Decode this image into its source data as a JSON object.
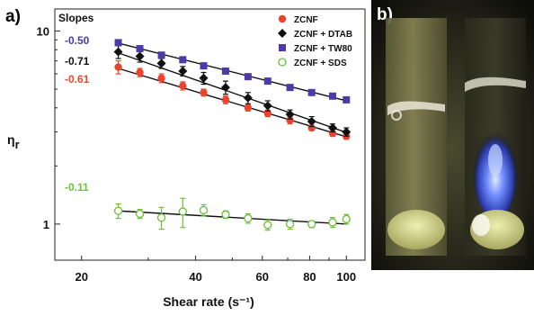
{
  "panel_labels": {
    "a": "a)",
    "b": "b)"
  },
  "chart_data": {
    "type": "scatter",
    "xlabel": "Shear rate (s⁻¹)",
    "ylabel": "ηr",
    "x_scale": "log",
    "y_scale": "log",
    "xlim": [
      17,
      112
    ],
    "ylim": [
      0.65,
      13
    ],
    "x_ticks": [
      20,
      40,
      60,
      80,
      100
    ],
    "y_ticks": [
      1,
      10
    ],
    "slopes_title": "Slopes",
    "legend_position": "top-right",
    "series": [
      {
        "name": "ZCNF",
        "slope": "-0.61",
        "color": "#e8452e",
        "marker": "circle-filled",
        "x": [
          25.0,
          28.5,
          32.5,
          37,
          42,
          48,
          55,
          62,
          71,
          81,
          92,
          100
        ],
        "y": [
          6.5,
          6.1,
          5.7,
          5.2,
          4.8,
          4.4,
          4.0,
          3.75,
          3.45,
          3.15,
          2.95,
          2.85
        ],
        "err": [
          0.5,
          0.3,
          0.3,
          0.25,
          0.2,
          0.2,
          0.15,
          0.15,
          0.15,
          0.1,
          0.1,
          0.1
        ]
      },
      {
        "name": "ZCNF + DTAB",
        "slope": "-0.71",
        "color": "#111111",
        "marker": "diamond",
        "x": [
          25.0,
          28.5,
          32.5,
          37,
          42,
          48,
          55,
          62,
          71,
          81,
          92,
          100
        ],
        "y": [
          7.8,
          7.4,
          6.8,
          6.2,
          5.7,
          5.1,
          4.5,
          4.1,
          3.7,
          3.4,
          3.15,
          3.0
        ],
        "err": [
          0.6,
          0.5,
          0.4,
          0.35,
          0.4,
          0.4,
          0.3,
          0.25,
          0.2,
          0.2,
          0.15,
          0.15
        ]
      },
      {
        "name": "ZCNF + TW80",
        "slope": "-0.50",
        "color": "#4b3aa8",
        "marker": "square-filled",
        "x": [
          25.0,
          28.5,
          32.5,
          37,
          42,
          48,
          55,
          62,
          71,
          81,
          92,
          100
        ],
        "y": [
          8.7,
          8.1,
          7.5,
          7.1,
          6.6,
          6.2,
          5.8,
          5.5,
          5.1,
          4.8,
          4.6,
          4.4
        ],
        "err": [
          0.3,
          0.2,
          0.2,
          0.2,
          0.2,
          0.15,
          0.15,
          0.15,
          0.15,
          0.1,
          0.1,
          0.1
        ]
      },
      {
        "name": "ZCNF + SDS",
        "slope": "-0.11",
        "color": "#6cbf3a",
        "marker": "circle-open",
        "x": [
          25.0,
          28.5,
          32.5,
          37,
          42,
          48,
          55,
          62,
          71,
          81,
          92,
          100
        ],
        "y": [
          1.17,
          1.13,
          1.08,
          1.16,
          1.18,
          1.12,
          1.07,
          0.99,
          1.0,
          1.0,
          1.02,
          1.06
        ],
        "err": [
          0.1,
          0.06,
          0.14,
          0.2,
          0.08,
          0.05,
          0.06,
          0.06,
          0.06,
          0.04,
          0.06,
          0.06
        ]
      }
    ],
    "fit_lines": [
      {
        "series": "ZCNF",
        "x": [
          25.0,
          100
        ],
        "y": [
          6.4,
          2.83
        ]
      },
      {
        "series": "ZCNF + DTAB",
        "x": [
          25.0,
          100
        ],
        "y": [
          7.7,
          2.98
        ]
      },
      {
        "series": "ZCNF + TW80",
        "x": [
          25.0,
          100
        ],
        "y": [
          8.65,
          4.35
        ]
      },
      {
        "series": "ZCNF + SDS",
        "x": [
          25.0,
          100
        ],
        "y": [
          1.17,
          1.0
        ]
      }
    ]
  }
}
